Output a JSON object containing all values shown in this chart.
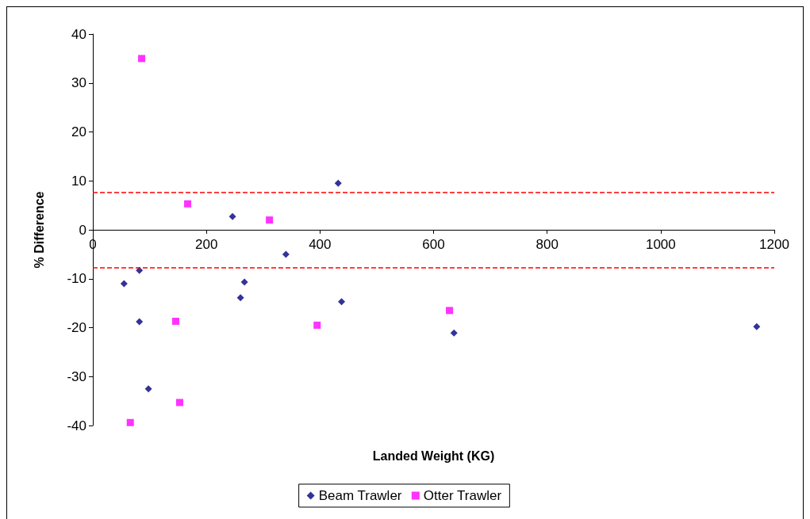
{
  "chart_data": {
    "type": "scatter",
    "xlabel": "Landed Weight (KG)",
    "ylabel": "% Difference",
    "xlim": [
      0,
      1200
    ],
    "xticks": [
      0,
      200,
      400,
      600,
      800,
      1000,
      1200
    ],
    "ylim": [
      -40,
      40
    ],
    "yticks": [
      -40,
      -30,
      -20,
      -10,
      0,
      10,
      20,
      30,
      40
    ],
    "legend": "bottom",
    "series": [
      {
        "name": "Beam Trawler",
        "color": "#000080",
        "marker": "diamond",
        "x": [
          55,
          82,
          82,
          98,
          246,
          260,
          267,
          340,
          432,
          438,
          636,
          1169
        ],
        "values": [
          -11.0,
          -8.3,
          -18.8,
          -32.5,
          2.7,
          -13.9,
          -10.7,
          -5.0,
          9.5,
          -14.7,
          -21.1,
          -19.8
        ]
      },
      {
        "name": "Otter Trawler",
        "color": "#ff00ff",
        "marker": "square",
        "x": [
          66,
          86,
          146,
          153,
          167,
          311,
          395,
          628
        ],
        "values": [
          -39.4,
          35.0,
          -18.7,
          -35.3,
          5.3,
          2.0,
          -19.5,
          -16.5
        ]
      }
    ],
    "ref_lines": [
      {
        "axis": "y",
        "value": 7.7,
        "color": "#ff0000",
        "line_style": "dashed"
      },
      {
        "axis": "y",
        "value": -7.7,
        "color": "#ff0000",
        "line_style": "dashed"
      }
    ]
  }
}
